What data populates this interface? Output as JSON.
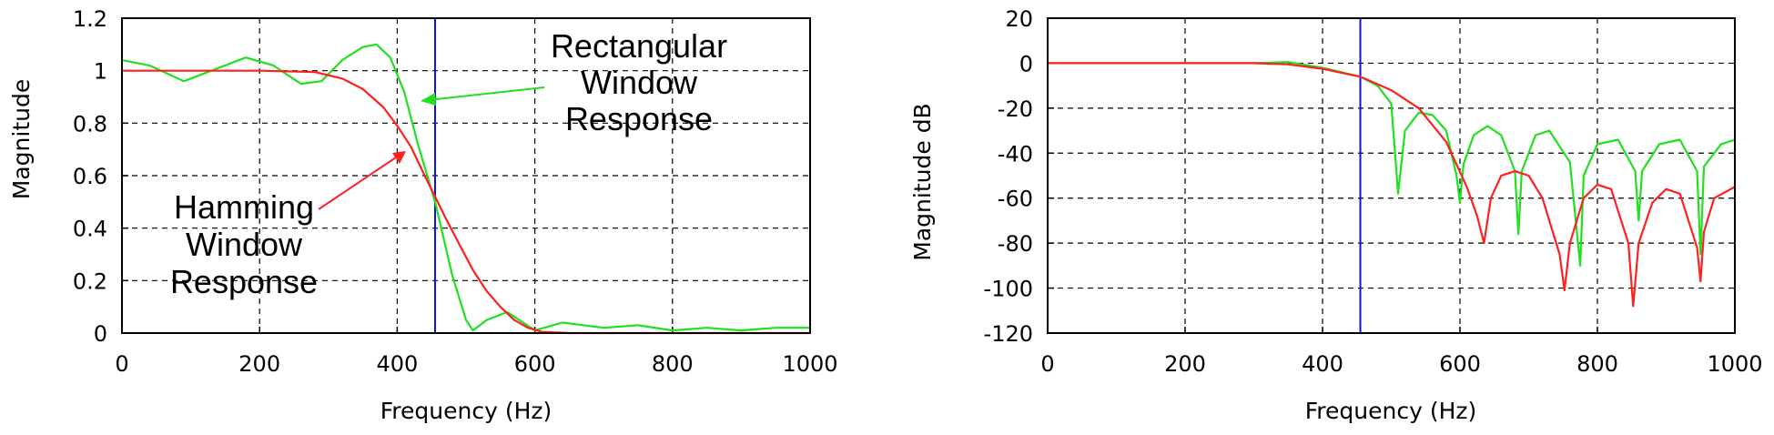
{
  "chart_data": [
    {
      "type": "line",
      "title": "",
      "xlabel": "Frequency (Hz)",
      "ylabel": "Magnitude",
      "xlim": [
        0,
        1000
      ],
      "ylim": [
        0,
        1.2
      ],
      "xticks": [
        "0",
        "200",
        "400",
        "600",
        "800",
        "1000"
      ],
      "yticks": [
        "0",
        "0.2",
        "0.4",
        "0.6",
        "0.8",
        "1",
        "1.2"
      ],
      "grid": true,
      "vline_x": 455,
      "colors": {
        "hamming": "#ff2020",
        "rectangular": "#20e020",
        "cutoff": "#1010e0"
      },
      "series": [
        {
          "key": "rectangular",
          "x": [
            0,
            40,
            90,
            140,
            180,
            220,
            260,
            290,
            320,
            350,
            370,
            390,
            410,
            430,
            455,
            480,
            500,
            510,
            530,
            560,
            600,
            640,
            700,
            750,
            800,
            850,
            900,
            950,
            1000
          ],
          "values": [
            1.04,
            1.02,
            0.96,
            1.01,
            1.05,
            1.02,
            0.95,
            0.96,
            1.04,
            1.09,
            1.1,
            1.05,
            0.92,
            0.72,
            0.5,
            0.22,
            0.05,
            0.01,
            0.05,
            0.08,
            0.01,
            0.04,
            0.02,
            0.03,
            0.01,
            0.02,
            0.01,
            0.02,
            0.02
          ]
        },
        {
          "key": "hamming",
          "x": [
            0,
            100,
            200,
            280,
            320,
            350,
            380,
            400,
            420,
            440,
            455,
            470,
            490,
            510,
            530,
            550,
            570,
            590,
            610,
            650,
            700,
            800,
            900,
            1000
          ],
          "values": [
            1.0,
            1.0,
            1.0,
            0.995,
            0.97,
            0.93,
            0.86,
            0.79,
            0.71,
            0.6,
            0.52,
            0.44,
            0.34,
            0.24,
            0.16,
            0.1,
            0.05,
            0.02,
            0.005,
            0.0,
            0.0,
            0.0,
            0.0,
            0.0
          ]
        }
      ],
      "annotations": [
        {
          "key": "rect_label",
          "lines": [
            "Rectangular",
            "Window",
            "Response"
          ]
        },
        {
          "key": "hamming_label",
          "lines": [
            "Hamming",
            "Window",
            "Response"
          ]
        }
      ]
    },
    {
      "type": "line",
      "title": "",
      "xlabel": "Frequency (Hz)",
      "ylabel": "Magnitude dB",
      "xlim": [
        0,
        1000
      ],
      "ylim": [
        -120,
        20
      ],
      "xticks": [
        "0",
        "200",
        "400",
        "600",
        "800",
        "1000"
      ],
      "yticks": [
        "20",
        "0",
        "-20",
        "-40",
        "-60",
        "-80",
        "-100",
        "-120"
      ],
      "grid": true,
      "vline_x": 455,
      "colors": {
        "hamming": "#ff2020",
        "rectangular": "#20e020",
        "cutoff": "#1010e0"
      },
      "series": [
        {
          "key": "rectangular",
          "x": [
            0,
            200,
            300,
            350,
            400,
            455,
            480,
            500,
            510,
            520,
            540,
            560,
            580,
            595,
            600,
            605,
            620,
            640,
            660,
            680,
            685,
            690,
            710,
            730,
            760,
            775,
            780,
            800,
            830,
            855,
            860,
            865,
            890,
            920,
            945,
            950,
            955,
            980,
            1000
          ],
          "values": [
            0,
            0,
            0,
            0.5,
            -2,
            -6,
            -10,
            -18,
            -58,
            -30,
            -22,
            -23,
            -30,
            -50,
            -62,
            -45,
            -32,
            -28,
            -32,
            -48,
            -76,
            -48,
            -32,
            -30,
            -44,
            -90,
            -50,
            -36,
            -34,
            -48,
            -70,
            -48,
            -36,
            -34,
            -48,
            -85,
            -46,
            -36,
            -34
          ]
        },
        {
          "key": "hamming",
          "x": [
            0,
            200,
            300,
            350,
            400,
            455,
            500,
            540,
            580,
            610,
            625,
            635,
            645,
            660,
            680,
            700,
            720,
            745,
            752,
            760,
            780,
            800,
            820,
            845,
            852,
            860,
            880,
            900,
            920,
            945,
            950,
            955,
            970,
            1000
          ],
          "values": [
            0,
            0,
            0,
            -0.5,
            -2.5,
            -6,
            -12,
            -20,
            -35,
            -55,
            -68,
            -80,
            -60,
            -50,
            -48,
            -50,
            -60,
            -85,
            -101,
            -80,
            -60,
            -54,
            -56,
            -80,
            -108,
            -80,
            -62,
            -56,
            -58,
            -82,
            -97,
            -75,
            -60,
            -55
          ]
        }
      ]
    }
  ]
}
